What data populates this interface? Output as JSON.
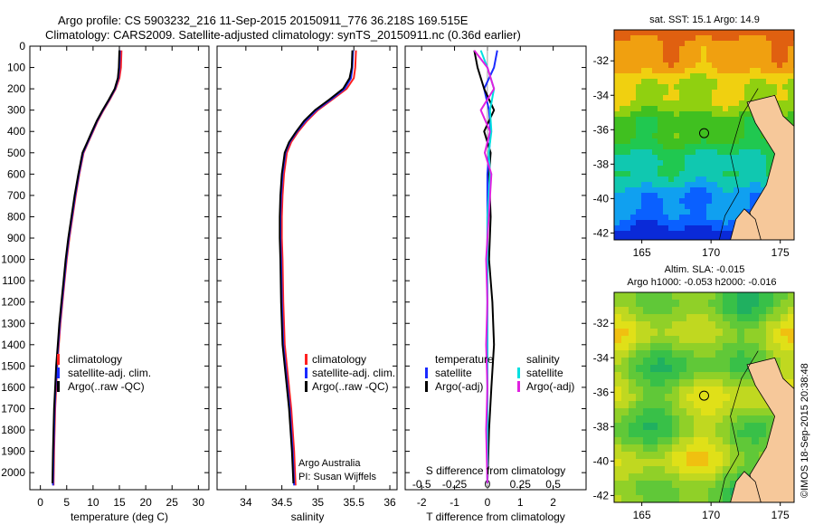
{
  "header": {
    "line1": "Argo profile: CS 5903232_216 11-Sep-2015 20150911_776 36.218S 169.515E",
    "line2": "Climatology: CARS2009. Satellite-adjusted climatology: synTS_20150911.nc (0.36d earlier)"
  },
  "credit": "©IMOS 18-Sep-2015 20:38:48",
  "colors": {
    "climatology": "#ff2020",
    "satellite_adj": "#1a2aff",
    "argo": "#000000",
    "s_satellite": "#00e0e0",
    "s_argo": "#e020e0",
    "land": "#f6c89a"
  },
  "chart_data": [
    {
      "id": "temperature",
      "type": "line",
      "xlabel": "temperature (deg C)",
      "xlim": [
        -2,
        32
      ],
      "xticks": [
        "0",
        "5",
        "10",
        "15",
        "20",
        "25",
        "30"
      ],
      "xtick_values": [
        0,
        5,
        10,
        15,
        20,
        25,
        30
      ],
      "ylim": [
        0,
        2080
      ],
      "yticks": [
        "0",
        "100",
        "200",
        "300",
        "400",
        "500",
        "600",
        "700",
        "800",
        "900",
        "1000",
        "1100",
        "1200",
        "1300",
        "1400",
        "1500",
        "1600",
        "1700",
        "1800",
        "1900",
        "2000"
      ],
      "ytick_values": [
        0,
        100,
        200,
        300,
        400,
        500,
        600,
        700,
        800,
        900,
        1000,
        1100,
        1200,
        1300,
        1400,
        1500,
        1600,
        1700,
        1800,
        1900,
        2000
      ],
      "legend": [
        "climatology",
        "satellite-adj. clim.",
        "Argo(..raw -QC)"
      ],
      "series": [
        {
          "name": "climatology",
          "color": "#ff2020",
          "x": [
            15.4,
            15.3,
            15.0,
            14.3,
            13.2,
            12.0,
            10.9,
            10.0,
            9.1,
            8.2,
            7.4,
            6.7,
            6.1,
            5.5,
            5.0,
            4.6,
            4.2,
            3.8,
            3.5,
            3.2,
            3.0,
            2.8,
            2.7,
            2.6,
            2.5
          ],
          "y": [
            20,
            100,
            150,
            200,
            250,
            300,
            350,
            400,
            450,
            500,
            600,
            700,
            800,
            900,
            1000,
            1100,
            1200,
            1300,
            1400,
            1500,
            1600,
            1700,
            1800,
            1900,
            2060
          ]
        },
        {
          "name": "satellite-adj. clim.",
          "color": "#1a2aff",
          "x": [
            15.1,
            15.0,
            14.8,
            14.2,
            13.1,
            11.9,
            10.8,
            9.9,
            9.0,
            8.1,
            7.3,
            6.6,
            6.0,
            5.4,
            4.9,
            4.5,
            4.1,
            3.7,
            3.4,
            3.1,
            2.9,
            2.7,
            2.6,
            2.5,
            2.4
          ],
          "y": [
            20,
            100,
            150,
            200,
            250,
            300,
            350,
            400,
            450,
            500,
            600,
            700,
            800,
            900,
            1000,
            1100,
            1200,
            1300,
            1400,
            1500,
            1600,
            1700,
            1800,
            1900,
            2060
          ]
        },
        {
          "name": "Argo(..raw -QC)",
          "color": "#000000",
          "x": [
            15.0,
            14.9,
            14.7,
            14.1,
            13.0,
            11.8,
            10.7,
            9.8,
            8.9,
            8.0,
            7.2,
            6.5,
            5.9,
            5.3,
            4.8,
            4.4,
            4.0,
            3.6,
            3.3,
            3.0,
            2.8,
            2.6,
            2.5,
            2.4,
            2.3
          ],
          "y": [
            20,
            100,
            150,
            200,
            250,
            300,
            350,
            400,
            450,
            500,
            600,
            700,
            800,
            900,
            1000,
            1100,
            1200,
            1300,
            1400,
            1500,
            1600,
            1700,
            1800,
            1900,
            2050
          ]
        }
      ]
    },
    {
      "id": "salinity",
      "type": "line",
      "xlabel": "salinity",
      "xlim": [
        33.6,
        36.1
      ],
      "xticks": [
        "34",
        "34.5",
        "35",
        "35.5",
        "36"
      ],
      "xtick_values": [
        34,
        34.5,
        35,
        35.5,
        36
      ],
      "ylim": [
        0,
        2080
      ],
      "legend": [
        "climatology",
        "satellite-adj. clim.",
        "Argo(..raw -QC)"
      ],
      "annotations": [
        "Argo Australia",
        "PI: Susan Wijffels"
      ],
      "series": [
        {
          "name": "climatology",
          "color": "#ff2020",
          "x": [
            35.53,
            35.52,
            35.5,
            35.4,
            35.2,
            35.0,
            34.85,
            34.73,
            34.63,
            34.57,
            34.53,
            34.51,
            34.5,
            34.5,
            34.51,
            34.52,
            34.54,
            34.57,
            34.6,
            34.63,
            34.65,
            34.67,
            34.69
          ],
          "y": [
            20,
            100,
            150,
            200,
            250,
            300,
            350,
            400,
            450,
            500,
            600,
            700,
            800,
            900,
            1000,
            1200,
            1400,
            1500,
            1600,
            1700,
            1800,
            1900,
            2060
          ]
        },
        {
          "name": "satellite-adj. clim.",
          "color": "#1a2aff",
          "x": [
            35.49,
            35.48,
            35.46,
            35.37,
            35.18,
            34.98,
            34.83,
            34.71,
            34.61,
            34.55,
            34.51,
            34.49,
            34.48,
            34.48,
            34.49,
            34.5,
            34.52,
            34.55,
            34.58,
            34.61,
            34.63,
            34.65,
            34.67
          ],
          "y": [
            20,
            100,
            150,
            200,
            250,
            300,
            350,
            400,
            450,
            500,
            600,
            700,
            800,
            900,
            1000,
            1200,
            1400,
            1500,
            1600,
            1700,
            1800,
            1900,
            2060
          ]
        },
        {
          "name": "Argo(..raw -QC)",
          "color": "#000000",
          "x": [
            35.48,
            35.47,
            35.44,
            35.35,
            35.16,
            34.96,
            34.81,
            34.7,
            34.6,
            34.54,
            34.5,
            34.48,
            34.47,
            34.47,
            34.48,
            34.49,
            34.51,
            34.54,
            34.57,
            34.6,
            34.62,
            34.64,
            34.66
          ],
          "y": [
            20,
            100,
            150,
            200,
            250,
            300,
            350,
            400,
            450,
            500,
            600,
            700,
            800,
            900,
            1000,
            1200,
            1400,
            1500,
            1600,
            1700,
            1800,
            1900,
            2050
          ]
        }
      ]
    },
    {
      "id": "difference",
      "type": "line",
      "xlabel": "T difference from climatology",
      "xlabel_top": "S difference from climatology",
      "xlim": [
        -2.5,
        3
      ],
      "xticks": [
        "-2",
        "-1",
        "0",
        "1",
        "2"
      ],
      "xtick_values": [
        -2,
        -1,
        0,
        1,
        2
      ],
      "xticks_top": [
        "-0.5",
        "-0.25",
        "0",
        "0.25",
        "0.5"
      ],
      "xtick_top_values": [
        -0.5,
        -0.25,
        0,
        0.25,
        0.5
      ],
      "ylim": [
        0,
        2080
      ],
      "legend_t_title": "temperature",
      "legend_s_title": "salinity",
      "legend_t": [
        "satellite",
        "Argo(-adj)"
      ],
      "legend_s": [
        "satellite",
        "Argo(-adj)"
      ],
      "series": [
        {
          "name": "satellite",
          "group": "temperature",
          "color": "#1a2aff",
          "x": [
            0.3,
            0.2,
            -0.1,
            0.05,
            0.1,
            0.05,
            0.0,
            0.0,
            0.0,
            0.0,
            0.0,
            0.0,
            0.0,
            0.0
          ],
          "y": [
            20,
            100,
            200,
            300,
            400,
            500,
            600,
            800,
            1000,
            1200,
            1400,
            1600,
            1800,
            2050
          ]
        },
        {
          "name": "Argo(-adj)",
          "group": "temperature",
          "color": "#000000",
          "x": [
            -0.4,
            -0.3,
            -0.1,
            0.2,
            -0.1,
            0.1,
            0.05,
            0.1,
            0.05,
            0.15,
            0.2,
            0.12,
            0.05,
            0.0
          ],
          "y": [
            20,
            100,
            200,
            300,
            400,
            500,
            600,
            800,
            1000,
            1200,
            1400,
            1600,
            1800,
            2050
          ]
        },
        {
          "name": "satellite",
          "group": "salinity",
          "color": "#00e0e0",
          "x": [
            -0.05,
            0.0,
            0.05,
            0.02,
            0.03,
            0.01,
            0.02,
            0.0,
            0.0,
            0.0,
            0.0,
            0.0,
            0.0,
            0.0
          ],
          "y": [
            20,
            100,
            200,
            300,
            400,
            500,
            600,
            800,
            1000,
            1200,
            1400,
            1600,
            1800,
            2050
          ]
        },
        {
          "name": "Argo(-adj)",
          "group": "salinity",
          "color": "#e020e0",
          "x": [
            -0.1,
            0.0,
            0.05,
            -0.05,
            0.02,
            -0.02,
            0.03,
            0.01,
            -0.01,
            0.0,
            -0.01,
            0.0,
            -0.01,
            0.0
          ],
          "y": [
            20,
            100,
            200,
            300,
            400,
            500,
            600,
            800,
            1000,
            1200,
            1400,
            1600,
            1800,
            2050
          ]
        }
      ]
    },
    {
      "id": "sst_map",
      "type": "heatmap",
      "title": "sat. SST: 15.1  Argo: 14.9",
      "xlim": [
        163,
        176
      ],
      "ylim": [
        -42.4,
        -30.2
      ],
      "xticks": [
        "165",
        "170",
        "175"
      ],
      "xtick_values": [
        165,
        170,
        175
      ],
      "yticks": [
        "-32",
        "-34",
        "-36",
        "-38",
        "-40",
        "-42"
      ],
      "ytick_values": [
        -32,
        -34,
        -36,
        -38,
        -40,
        -42
      ],
      "marker": {
        "lon": 169.5,
        "lat": -36.2
      }
    },
    {
      "id": "sla_map",
      "type": "heatmap",
      "title": "Altim. SLA: -0.015",
      "subtitle": "Argo h1000: -0.053 h2000: -0.016",
      "xlim": [
        163,
        176
      ],
      "ylim": [
        -42.4,
        -30.2
      ],
      "xticks": [
        "165",
        "170",
        "175"
      ],
      "xtick_values": [
        165,
        170,
        175
      ],
      "yticks": [
        "-32",
        "-34",
        "-36",
        "-38",
        "-40",
        "-42"
      ],
      "ytick_values": [
        -32,
        -34,
        -36,
        -38,
        -40,
        -42
      ],
      "marker": {
        "lon": 169.5,
        "lat": -36.2
      }
    }
  ]
}
